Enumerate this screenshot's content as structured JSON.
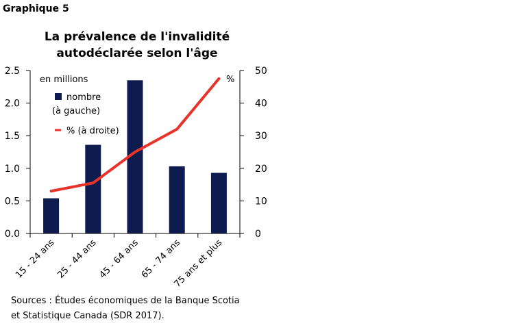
{
  "header": {
    "label": "Graphique 5"
  },
  "chart_data": {
    "type": "bar",
    "title": "La prévalence de l'invalidité autodéclarée selon l'âge",
    "title_lines": [
      "La prévalence de l'invalidité",
      "autodéclarée selon l'âge"
    ],
    "categories": [
      "15 - 24 ans",
      "25 - 44 ans",
      "45 - 64 ans",
      "65 - 74 ans",
      "75 ans et plus"
    ],
    "series": [
      {
        "name": "nombre (à gauche)",
        "name_lines": [
          "nombre",
          "(à gauche)"
        ],
        "type": "bar",
        "axis": "left",
        "color": "#0d1b4f",
        "values": [
          0.54,
          1.36,
          2.35,
          1.03,
          0.93
        ]
      },
      {
        "name": "% (à droite)",
        "type": "line",
        "axis": "right",
        "color": "#e8322a",
        "values": [
          13,
          15.5,
          25,
          32,
          47.5
        ]
      }
    ],
    "left_axis": {
      "unit_label": "en millions",
      "ylim": [
        0,
        2.5
      ],
      "ticks": [
        "0.0",
        "0.5",
        "1.0",
        "1.5",
        "2.0",
        "2.5"
      ]
    },
    "right_axis": {
      "unit_label": "%",
      "ylim": [
        0,
        50
      ],
      "ticks": [
        "0",
        "10",
        "20",
        "30",
        "40",
        "50"
      ]
    },
    "grid": false,
    "legend": "top-left"
  },
  "footer": {
    "source_lines": [
      "Sources : Études économiques de la Banque Scotia",
      "et Statistique Canada (SDR 2017)."
    ]
  }
}
